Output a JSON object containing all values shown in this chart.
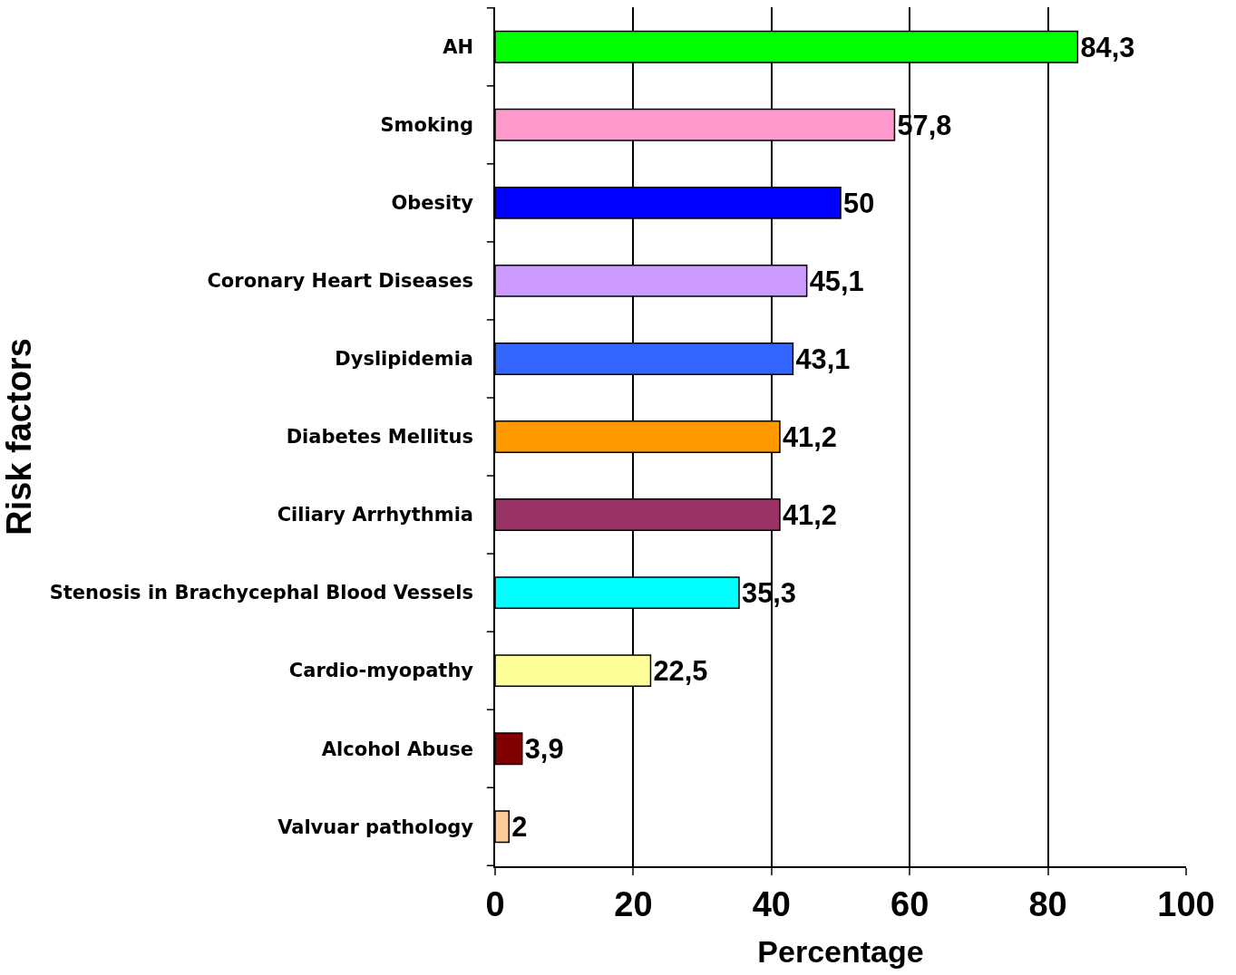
{
  "chart_data": {
    "type": "bar",
    "orientation": "horizontal",
    "xlabel": "Percentage",
    "ylabel": "Risk factors",
    "categories": [
      "AH",
      "Smoking",
      "Obesity",
      "Coronary Heart Diseases",
      "Dyslipidemia",
      "Diabetes Mellitus",
      "Ciliary Arrhythmia",
      "Stenosis in Brachycephal Blood Vessels",
      "Cardio-myopathy",
      "Alcohol Abuse",
      "Valvuar pathology"
    ],
    "values": [
      84.3,
      57.8,
      50,
      45.1,
      43.1,
      41.2,
      41.2,
      35.3,
      22.5,
      3.9,
      2
    ],
    "value_labels": [
      "84,3",
      "57,8",
      "50",
      "45,1",
      "43,1",
      "41,2",
      "41,2",
      "35,3",
      "22,5",
      "3,9",
      "2"
    ],
    "colors": [
      "#00ff00",
      "#ff99cc",
      "#0000ff",
      "#cc99ff",
      "#3366ff",
      "#ff9900",
      "#993366",
      "#00ffff",
      "#ffff99",
      "#800000",
      "#ffcc99"
    ],
    "xlim": [
      0,
      100
    ],
    "xticks": [
      0,
      20,
      40,
      60,
      80,
      100
    ],
    "grid": "x"
  }
}
